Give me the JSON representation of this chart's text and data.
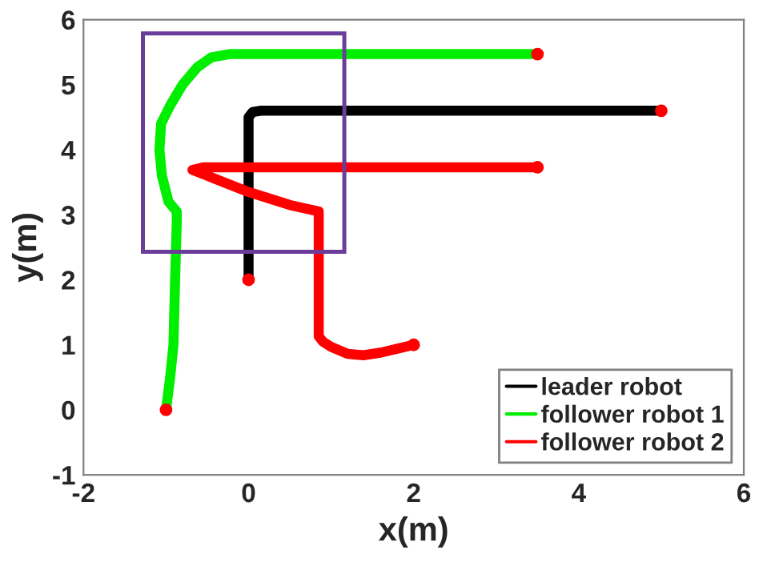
{
  "chart_data": {
    "type": "line",
    "xlabel": "x(m)",
    "ylabel": "y(m)",
    "xlim": [
      -2,
      6
    ],
    "ylim": [
      -1,
      6
    ],
    "xticks": [
      -2,
      0,
      2,
      4,
      6
    ],
    "yticks": [
      -1,
      0,
      1,
      2,
      3,
      4,
      5,
      6
    ],
    "grid": false,
    "legend": "bottom right",
    "series": [
      {
        "name": "leader robot",
        "color": "#000000",
        "x": [
          0,
          0,
          0.05,
          0.15,
          5
        ],
        "values": [
          2,
          4.5,
          4.58,
          4.6,
          4.6
        ]
      },
      {
        "name": "follower robot 1",
        "color": "#00ee00",
        "x": [
          -1,
          -0.95,
          -0.91,
          -0.89,
          -0.87,
          -0.87,
          -0.97,
          -1.05,
          -1.08,
          -1.06,
          -0.95,
          -0.8,
          -0.62,
          -0.45,
          -0.23,
          3.5
        ],
        "values": [
          0,
          0.5,
          1,
          2,
          2.9,
          3.05,
          3.2,
          3.6,
          4,
          4.4,
          4.68,
          5,
          5.27,
          5.42,
          5.47,
          5.47
        ]
      },
      {
        "name": "follower robot 2",
        "color": "#ff0000",
        "marker": "circle",
        "x": [
          2,
          1.8,
          1.6,
          1.39,
          1.2,
          1.0,
          0.9,
          0.85,
          0.85,
          0.85,
          0.5,
          0,
          -0.4,
          -0.68,
          -0.55,
          3.5
        ],
        "values": [
          1,
          0.94,
          0.88,
          0.84,
          0.86,
          0.97,
          1.05,
          1.13,
          2,
          3.05,
          3.15,
          3.35,
          3.55,
          3.69,
          3.73,
          3.73
        ]
      },
      {
        "type": "scatter",
        "color": "#ff0000",
        "x": [
          0,
          5,
          -1,
          3.5,
          3.5,
          2
        ],
        "values": [
          2,
          4.6,
          0,
          5.47,
          3.73,
          1
        ]
      }
    ]
  }
}
